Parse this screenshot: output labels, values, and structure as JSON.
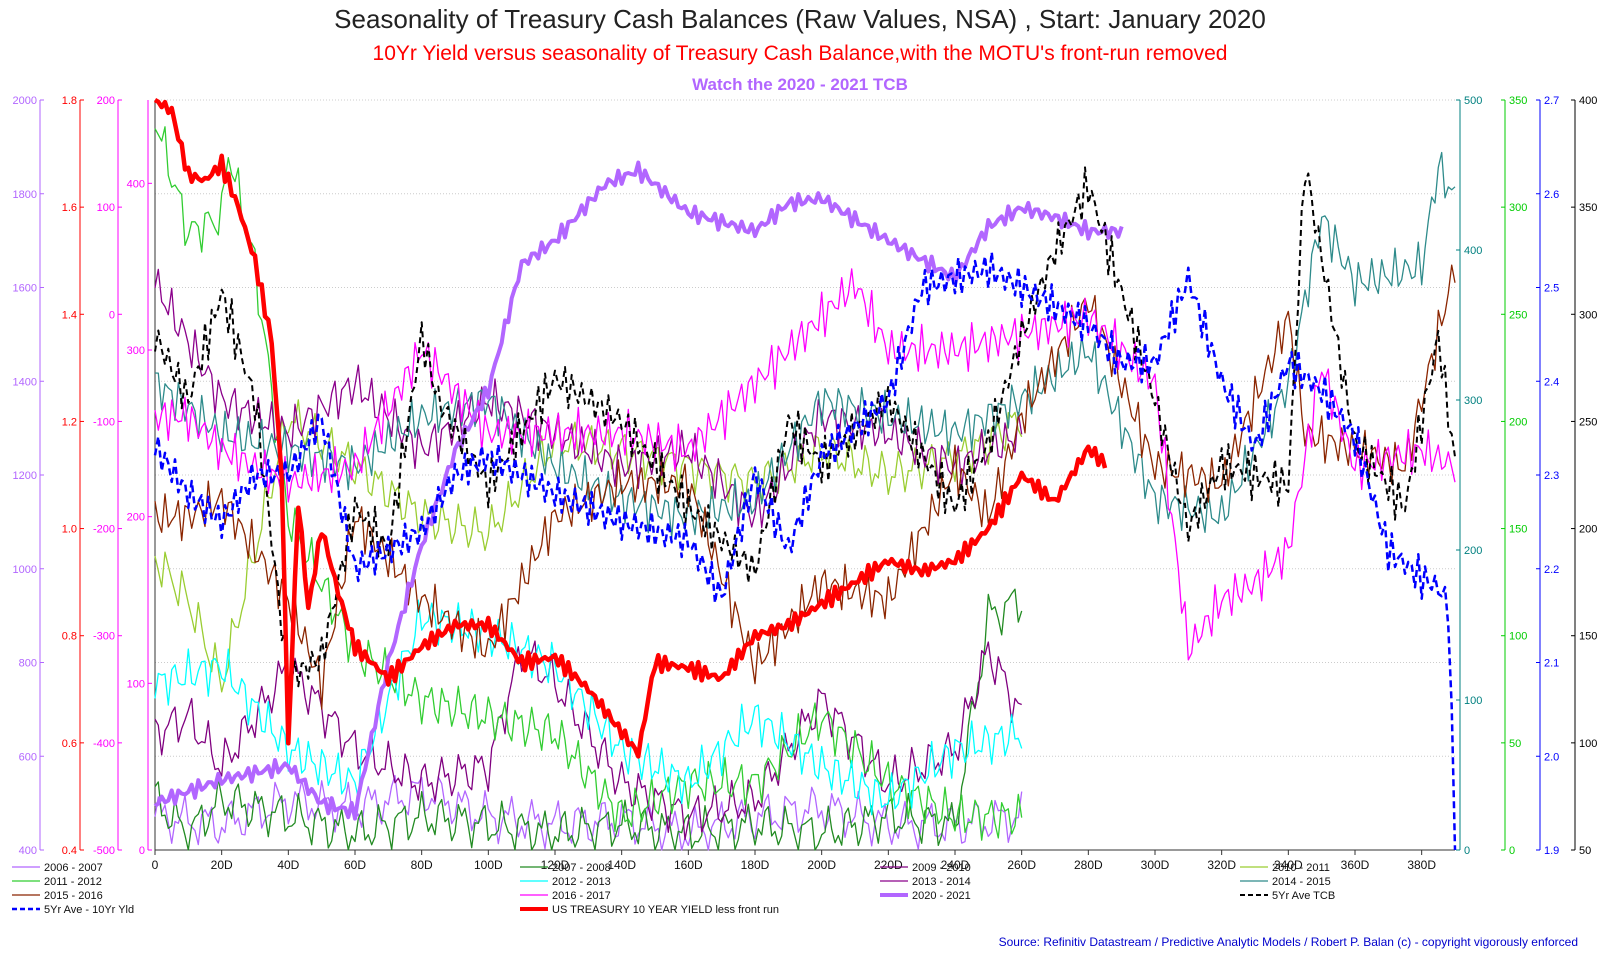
{
  "titles": {
    "main": "Seasonality of Treasury Cash Balances (Raw Values, NSA) , Start: January 2020",
    "subtitle": "10Yr Yield versus seasonality of Treasury Cash Balance,with the MOTU's front-run removed",
    "note": "Watch the 2020 - 2021 TCB"
  },
  "source": "Source: Refinitiv Datastream / Predictive Analytic Models / Robert P. Balan (c)  - copyright vigorously enforced",
  "chart_data": {
    "type": "line",
    "grid": "horizontal dotted",
    "x_axis": {
      "range": [
        0,
        390
      ],
      "ticks": [
        "0",
        "20D",
        "40D",
        "60D",
        "80D",
        "100D",
        "120D",
        "140D",
        "160D",
        "180D",
        "200D",
        "220D",
        "240D",
        "260D",
        "280D",
        "300D",
        "320D",
        "340D",
        "360D",
        "380D"
      ],
      "tick_values": [
        0,
        20,
        40,
        60,
        80,
        100,
        120,
        140,
        160,
        180,
        200,
        220,
        240,
        260,
        280,
        300,
        320,
        340,
        360,
        380
      ]
    },
    "axes": {
      "left1": {
        "color": "#b266ff",
        "range": [
          400,
          2000
        ],
        "ticks": [
          "400",
          "600",
          "800",
          "1000",
          "1200",
          "1400",
          "1600",
          "1800",
          "2000"
        ]
      },
      "left2": {
        "color": "#ff0000",
        "range": [
          0.4,
          1.8
        ],
        "ticks": [
          "0.4",
          "0.6",
          "0.8",
          "1.0",
          "1.2",
          "1.4",
          "1.6",
          "1.8"
        ]
      },
      "left3": {
        "color": "#ff00ff",
        "range": [
          -500,
          200
        ],
        "ticks": [
          "-500",
          "-400",
          "-300",
          "-200",
          "-100",
          "0",
          "100",
          "200"
        ]
      },
      "left4": {
        "color": "#ff00ff",
        "range": [
          0,
          450
        ],
        "ticks": [
          "0",
          "100",
          "200",
          "300",
          "400"
        ]
      },
      "right1": {
        "color": "#008080",
        "range": [
          0,
          500
        ],
        "ticks": [
          "0",
          "100",
          "200",
          "300",
          "400",
          "500"
        ]
      },
      "right2": {
        "color": "#00cc00",
        "range": [
          0,
          350
        ],
        "ticks": [
          "0",
          "50",
          "100",
          "150",
          "200",
          "250",
          "300",
          "350"
        ]
      },
      "right3": {
        "color": "#0000ff",
        "range": [
          1.9,
          2.7
        ],
        "ticks": [
          "1.9",
          "2.0",
          "2.1",
          "2.2",
          "2.3",
          "2.4",
          "2.5",
          "2.6",
          "2.7"
        ]
      },
      "right4": {
        "color": "#000000",
        "range": [
          50,
          400
        ],
        "ticks": [
          "50",
          "100",
          "150",
          "200",
          "250",
          "300",
          "350",
          "400"
        ]
      }
    },
    "series": [
      {
        "name": "2006 - 2007",
        "color": "#b266ff",
        "width": 1.3,
        "dash": "",
        "axis": "left4",
        "x_end": 260,
        "key_x": [
          0,
          20,
          40,
          60,
          80,
          100,
          120,
          140,
          160,
          180,
          200,
          220,
          240,
          260
        ],
        "key_y": [
          20,
          15,
          30,
          25,
          35,
          20,
          15,
          18,
          10,
          20,
          25,
          15,
          15,
          20
        ]
      },
      {
        "name": "2007 - 2008",
        "color": "#228b22",
        "width": 1.3,
        "dash": "",
        "axis": "left4",
        "x_end": 260,
        "key_x": [
          0,
          10,
          20,
          40,
          60,
          80,
          100,
          120,
          140,
          160,
          180,
          200,
          220,
          240,
          250,
          260
        ],
        "key_y": [
          30,
          10,
          30,
          20,
          10,
          20,
          15,
          10,
          15,
          10,
          15,
          10,
          20,
          15,
          140,
          150
        ]
      },
      {
        "name": "2009 - 2010",
        "color": "#800080",
        "width": 1.3,
        "dash": "",
        "axis": "left4",
        "x_end": 260,
        "key_x": [
          0,
          10,
          20,
          40,
          60,
          80,
          100,
          110,
          120,
          140,
          160,
          180,
          200,
          220,
          240,
          250,
          260
        ],
        "key_y": [
          70,
          80,
          50,
          110,
          60,
          40,
          50,
          120,
          100,
          40,
          20,
          30,
          90,
          40,
          60,
          120,
          80
        ]
      },
      {
        "name": "2010 - 2011",
        "color": "#9acd32",
        "width": 1.3,
        "dash": "",
        "axis": "left4",
        "x_end": 260,
        "key_x": [
          0,
          10,
          20,
          40,
          60,
          80,
          100,
          120,
          140,
          160,
          180,
          200,
          220,
          240,
          250,
          260
        ],
        "key_y": [
          175,
          150,
          100,
          260,
          230,
          200,
          190,
          245,
          240,
          230,
          220,
          240,
          225,
          235,
          245,
          260
        ]
      },
      {
        "name": "2011 - 2012",
        "color": "#32cd32",
        "width": 1.3,
        "dash": "",
        "axis": "left4",
        "x_end": 260,
        "key_x": [
          0,
          10,
          20,
          22,
          30,
          40,
          60,
          80,
          100,
          120,
          140,
          160,
          180,
          200,
          220,
          240,
          260
        ],
        "key_y": [
          440,
          370,
          380,
          420,
          350,
          200,
          120,
          90,
          80,
          70,
          20,
          40,
          40,
          80,
          40,
          20,
          20
        ]
      },
      {
        "name": "2012 - 2013",
        "color": "#00ffff",
        "width": 1.3,
        "dash": "",
        "axis": "left4",
        "x_end": 260,
        "key_x": [
          0,
          20,
          40,
          60,
          80,
          100,
          120,
          140,
          160,
          180,
          200,
          220,
          240,
          260
        ],
        "key_y": [
          100,
          110,
          60,
          40,
          140,
          130,
          110,
          60,
          40,
          80,
          50,
          30,
          60,
          70
        ]
      },
      {
        "name": "2013 - 2014",
        "color": "#8b008b",
        "width": 1.3,
        "dash": "",
        "axis": "left4",
        "x_end": 260,
        "key_x": [
          0,
          20,
          40,
          60,
          80,
          100,
          120,
          140,
          160,
          180,
          200,
          220,
          240,
          260
        ],
        "key_y": [
          340,
          270,
          250,
          280,
          240,
          270,
          250,
          230,
          240,
          200,
          260,
          250,
          230,
          250
        ]
      },
      {
        "name": "2014 - 2015",
        "color": "#2e8b8b",
        "width": 1.3,
        "dash": "",
        "axis": "left4",
        "x_end": 390,
        "key_x": [
          0,
          20,
          40,
          60,
          80,
          100,
          120,
          140,
          160,
          180,
          200,
          220,
          240,
          260,
          280,
          300,
          320,
          340,
          350,
          360,
          380,
          385,
          390
        ],
        "key_y": [
          280,
          250,
          240,
          230,
          260,
          270,
          230,
          210,
          200,
          210,
          270,
          260,
          250,
          270,
          300,
          210,
          200,
          280,
          380,
          340,
          350,
          410,
          390
        ]
      },
      {
        "name": "2015 - 2016",
        "color": "#8b2500",
        "width": 1.3,
        "dash": "",
        "axis": "left4",
        "x_end": 390,
        "key_x": [
          0,
          10,
          20,
          40,
          50,
          60,
          80,
          100,
          120,
          140,
          160,
          180,
          200,
          220,
          240,
          250,
          260,
          280,
          300,
          320,
          340,
          345,
          360,
          375,
          390
        ],
        "key_y": [
          200,
          200,
          210,
          150,
          100,
          200,
          150,
          120,
          200,
          220,
          220,
          110,
          160,
          150,
          230,
          200,
          260,
          330,
          230,
          220,
          320,
          250,
          240,
          230,
          350
        ]
      },
      {
        "name": "2016 - 2017",
        "color": "#ff00ff",
        "width": 1.3,
        "dash": "",
        "axis": "left4",
        "x_end": 390,
        "key_x": [
          0,
          10,
          20,
          40,
          60,
          80,
          100,
          120,
          140,
          160,
          180,
          200,
          210,
          220,
          240,
          260,
          280,
          300,
          310,
          320,
          330,
          340,
          350,
          360,
          380,
          390
        ],
        "key_y": [
          260,
          260,
          240,
          220,
          230,
          300,
          250,
          250,
          250,
          240,
          280,
          320,
          340,
          300,
          300,
          310,
          320,
          280,
          120,
          150,
          160,
          180,
          290,
          230,
          240,
          230
        ]
      },
      {
        "name": "2020 - 2021",
        "color": "#b266ff",
        "width": 4,
        "dash": "",
        "axis": "left1",
        "x_end": 290,
        "key_x": [
          0,
          20,
          40,
          50,
          60,
          70,
          80,
          90,
          100,
          110,
          120,
          135,
          145,
          160,
          180,
          190,
          200,
          220,
          240,
          250,
          260,
          270,
          280,
          290
        ],
        "key_y": [
          500,
          550,
          580,
          500,
          480,
          800,
          1050,
          1250,
          1380,
          1650,
          1700,
          1820,
          1850,
          1760,
          1720,
          1780,
          1790,
          1700,
          1620,
          1730,
          1770,
          1750,
          1720,
          1720
        ]
      },
      {
        "name": "5Yr Ave TCB",
        "color": "#000000",
        "width": 2,
        "dash": "6,4",
        "axis": "right4",
        "x_end": 390,
        "key_x": [
          0,
          10,
          20,
          30,
          40,
          50,
          60,
          70,
          80,
          85,
          100,
          120,
          140,
          160,
          180,
          190,
          200,
          220,
          240,
          250,
          260,
          270,
          280,
          300,
          310,
          320,
          340,
          345,
          360,
          375,
          385,
          390
        ],
        "key_y": [
          290,
          260,
          310,
          260,
          130,
          140,
          210,
          190,
          290,
          260,
          220,
          270,
          250,
          210,
          180,
          250,
          230,
          260,
          210,
          240,
          290,
          330,
          360,
          260,
          200,
          230,
          220,
          370,
          240,
          210,
          290,
          230
        ]
      },
      {
        "name": "5Yr Ave - 10Yr Yld",
        "color": "#0000ff",
        "width": 2.5,
        "dash": "7,4",
        "axis": "right3",
        "x_end": 390,
        "key_x": [
          0,
          10,
          20,
          30,
          40,
          50,
          60,
          70,
          80,
          90,
          100,
          120,
          140,
          160,
          170,
          180,
          190,
          200,
          220,
          230,
          240,
          250,
          260,
          270,
          280,
          290,
          300,
          310,
          320,
          330,
          340,
          350,
          360,
          370,
          380,
          385,
          388,
          390
        ],
        "key_y": [
          2.33,
          2.28,
          2.25,
          2.3,
          2.3,
          2.36,
          2.2,
          2.22,
          2.24,
          2.3,
          2.32,
          2.28,
          2.25,
          2.23,
          2.17,
          2.3,
          2.22,
          2.32,
          2.38,
          2.5,
          2.51,
          2.52,
          2.5,
          2.48,
          2.46,
          2.42,
          2.42,
          2.51,
          2.4,
          2.33,
          2.42,
          2.39,
          2.34,
          2.22,
          2.19,
          2.18,
          2.16,
          1.9
        ]
      },
      {
        "name": "US TREASURY 10 YEAR YIELD less front run",
        "color": "#ff0000",
        "width": 4.5,
        "dash": "",
        "axis": "left2",
        "x_end": 285,
        "key_x": [
          0,
          5,
          10,
          15,
          20,
          25,
          30,
          35,
          38,
          40,
          43,
          46,
          50,
          55,
          60,
          70,
          80,
          90,
          100,
          110,
          120,
          130,
          140,
          145,
          150,
          160,
          170,
          180,
          190,
          200,
          210,
          220,
          230,
          240,
          250,
          260,
          270,
          280,
          285
        ],
        "key_y": [
          1.8,
          1.78,
          1.66,
          1.65,
          1.68,
          1.6,
          1.5,
          1.35,
          1.1,
          0.6,
          1.05,
          0.85,
          1.0,
          0.88,
          0.78,
          0.72,
          0.78,
          0.82,
          0.82,
          0.75,
          0.76,
          0.7,
          0.62,
          0.58,
          0.75,
          0.74,
          0.72,
          0.8,
          0.82,
          0.86,
          0.9,
          0.94,
          0.92,
          0.94,
          1.0,
          1.1,
          1.05,
          1.15,
          1.12
        ]
      }
    ]
  }
}
